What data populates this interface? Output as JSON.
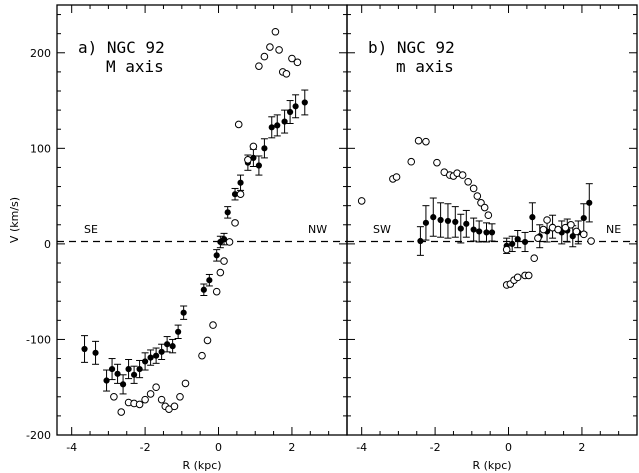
{
  "chart_data": [
    {
      "type": "scatter",
      "panel": "a",
      "title_line1": "a) NGC 92",
      "title_line2": "M axis",
      "xlabel": "R (kpc)",
      "ylabel": "V (km/s)",
      "xlim": [
        -4.4,
        3.5
      ],
      "ylim": [
        -200,
        250
      ],
      "xticks": [
        "-4",
        "-2",
        "0",
        "2"
      ],
      "yticks": [
        "-200",
        "-100",
        "0",
        "100",
        "200"
      ],
      "zero_line": true,
      "left_label": "SE",
      "right_label": "NW",
      "series": [
        {
          "marker": "filled-circle-errorbar",
          "points": [
            {
              "x": -3.65,
              "y": -110,
              "err": 14
            },
            {
              "x": -3.35,
              "y": -114,
              "err": 12
            },
            {
              "x": -3.05,
              "y": -143,
              "err": 11
            },
            {
              "x": -2.9,
              "y": -131,
              "err": 11
            },
            {
              "x": -2.75,
              "y": -136,
              "err": 10
            },
            {
              "x": -2.6,
              "y": -147,
              "err": 10
            },
            {
              "x": -2.45,
              "y": -131,
              "err": 10
            },
            {
              "x": -2.3,
              "y": -137,
              "err": 9
            },
            {
              "x": -2.15,
              "y": -131,
              "err": 9
            },
            {
              "x": -2.0,
              "y": -123,
              "err": 9
            },
            {
              "x": -1.85,
              "y": -119,
              "err": 8
            },
            {
              "x": -1.7,
              "y": -117,
              "err": 8
            },
            {
              "x": -1.55,
              "y": -113,
              "err": 8
            },
            {
              "x": -1.4,
              "y": -105,
              "err": 8
            },
            {
              "x": -1.25,
              "y": -107,
              "err": 7
            },
            {
              "x": -1.1,
              "y": -92,
              "err": 7
            },
            {
              "x": -0.95,
              "y": -72,
              "err": 7
            },
            {
              "x": -0.4,
              "y": -48,
              "err": 6
            },
            {
              "x": -0.25,
              "y": -38,
              "err": 6
            },
            {
              "x": -0.05,
              "y": -12,
              "err": 6
            },
            {
              "x": 0.05,
              "y": 2,
              "err": 6
            },
            {
              "x": 0.15,
              "y": 5,
              "err": 6
            },
            {
              "x": 0.25,
              "y": 33,
              "err": 6
            },
            {
              "x": 0.45,
              "y": 52,
              "err": 6
            },
            {
              "x": 0.6,
              "y": 64,
              "err": 8
            },
            {
              "x": 0.8,
              "y": 85,
              "err": 8
            },
            {
              "x": 0.95,
              "y": 90,
              "err": 9
            },
            {
              "x": 1.1,
              "y": 82,
              "err": 10
            },
            {
              "x": 1.25,
              "y": 100,
              "err": 10
            },
            {
              "x": 1.45,
              "y": 122,
              "err": 11
            },
            {
              "x": 1.6,
              "y": 124,
              "err": 11
            },
            {
              "x": 1.8,
              "y": 128,
              "err": 12
            },
            {
              "x": 1.95,
              "y": 138,
              "err": 12
            },
            {
              "x": 2.1,
              "y": 144,
              "err": 12
            },
            {
              "x": 2.35,
              "y": 148,
              "err": 13
            }
          ]
        },
        {
          "marker": "open-circle",
          "points": [
            {
              "x": -2.85,
              "y": -160
            },
            {
              "x": -2.65,
              "y": -176
            },
            {
              "x": -2.45,
              "y": -166
            },
            {
              "x": -2.3,
              "y": -167
            },
            {
              "x": -2.15,
              "y": -168
            },
            {
              "x": -2.0,
              "y": -163
            },
            {
              "x": -1.85,
              "y": -157
            },
            {
              "x": -1.7,
              "y": -150
            },
            {
              "x": -1.55,
              "y": -163
            },
            {
              "x": -1.45,
              "y": -170
            },
            {
              "x": -1.35,
              "y": -173
            },
            {
              "x": -1.2,
              "y": -170
            },
            {
              "x": -1.05,
              "y": -160
            },
            {
              "x": -0.9,
              "y": -146
            },
            {
              "x": -0.45,
              "y": -117
            },
            {
              "x": -0.3,
              "y": -101
            },
            {
              "x": -0.15,
              "y": -85
            },
            {
              "x": -0.05,
              "y": -50
            },
            {
              "x": 0.05,
              "y": -30
            },
            {
              "x": 0.15,
              "y": -18
            },
            {
              "x": 0.3,
              "y": 2
            },
            {
              "x": 0.45,
              "y": 22
            },
            {
              "x": 0.6,
              "y": 52
            },
            {
              "x": 0.8,
              "y": 88
            },
            {
              "x": 0.95,
              "y": 102
            },
            {
              "x": 1.1,
              "y": 186
            },
            {
              "x": 1.25,
              "y": 196
            },
            {
              "x": 1.4,
              "y": 206
            },
            {
              "x": 1.55,
              "y": 222
            },
            {
              "x": 1.65,
              "y": 203
            },
            {
              "x": 1.75,
              "y": 180
            },
            {
              "x": 1.85,
              "y": 178
            },
            {
              "x": 2.0,
              "y": 194
            },
            {
              "x": 2.15,
              "y": 190
            },
            {
              "x": 0.55,
              "y": 125
            }
          ]
        }
      ]
    },
    {
      "type": "scatter",
      "panel": "b",
      "title_line1": "b) NGC 92",
      "title_line2": "m axis",
      "xlabel": "R (kpc)",
      "ylabel": "",
      "xlim": [
        -4.4,
        3.5
      ],
      "ylim": [
        -200,
        250
      ],
      "xticks": [
        "-4",
        "-2",
        "0",
        "2"
      ],
      "yticks": [],
      "zero_line": true,
      "left_label": "SW",
      "right_label": "NE",
      "series": [
        {
          "marker": "filled-circle-errorbar",
          "points": [
            {
              "x": -2.4,
              "y": 3,
              "err": 15
            },
            {
              "x": -2.25,
              "y": 22,
              "err": 18
            },
            {
              "x": -2.05,
              "y": 28,
              "err": 20
            },
            {
              "x": -1.85,
              "y": 25,
              "err": 18
            },
            {
              "x": -1.65,
              "y": 24,
              "err": 18
            },
            {
              "x": -1.45,
              "y": 23,
              "err": 16
            },
            {
              "x": -1.3,
              "y": 16,
              "err": 15
            },
            {
              "x": -1.15,
              "y": 21,
              "err": 14
            },
            {
              "x": -0.95,
              "y": 15,
              "err": 12
            },
            {
              "x": -0.8,
              "y": 13,
              "err": 11
            },
            {
              "x": -0.6,
              "y": 12,
              "err": 10
            },
            {
              "x": -0.45,
              "y": 12,
              "err": 9
            },
            {
              "x": -0.05,
              "y": -2,
              "err": 8
            },
            {
              "x": 0.1,
              "y": 0,
              "err": 8
            },
            {
              "x": 0.25,
              "y": 5,
              "err": 9
            },
            {
              "x": 0.45,
              "y": 2,
              "err": 10
            },
            {
              "x": 0.65,
              "y": 28,
              "err": 15
            },
            {
              "x": 0.85,
              "y": 8,
              "err": 12
            },
            {
              "x": 1.05,
              "y": 13,
              "err": 11
            },
            {
              "x": 1.2,
              "y": 18,
              "err": 12
            },
            {
              "x": 1.45,
              "y": 12,
              "err": 12
            },
            {
              "x": 1.6,
              "y": 14,
              "err": 12
            },
            {
              "x": 1.75,
              "y": 8,
              "err": 11
            },
            {
              "x": 1.9,
              "y": 12,
              "err": 12
            },
            {
              "x": 2.05,
              "y": 27,
              "err": 15
            },
            {
              "x": 2.2,
              "y": 43,
              "err": 20
            }
          ]
        },
        {
          "marker": "open-circle",
          "points": [
            {
              "x": -4.0,
              "y": 45
            },
            {
              "x": -3.15,
              "y": 68
            },
            {
              "x": -3.05,
              "y": 70
            },
            {
              "x": -2.65,
              "y": 86
            },
            {
              "x": -2.45,
              "y": 108
            },
            {
              "x": -2.25,
              "y": 107
            },
            {
              "x": -1.95,
              "y": 85
            },
            {
              "x": -1.75,
              "y": 75
            },
            {
              "x": -1.6,
              "y": 72
            },
            {
              "x": -1.5,
              "y": 71
            },
            {
              "x": -1.4,
              "y": 74
            },
            {
              "x": -1.25,
              "y": 72
            },
            {
              "x": -1.1,
              "y": 65
            },
            {
              "x": -0.95,
              "y": 58
            },
            {
              "x": -0.85,
              "y": 50
            },
            {
              "x": -0.75,
              "y": 43
            },
            {
              "x": -0.65,
              "y": 38
            },
            {
              "x": -0.55,
              "y": 30
            },
            {
              "x": -0.05,
              "y": -43
            },
            {
              "x": 0.05,
              "y": -42
            },
            {
              "x": 0.15,
              "y": -38
            },
            {
              "x": 0.25,
              "y": -35
            },
            {
              "x": 0.45,
              "y": -33
            },
            {
              "x": 0.55,
              "y": -33
            },
            {
              "x": 0.7,
              "y": -15
            },
            {
              "x": 0.8,
              "y": 6
            },
            {
              "x": 0.95,
              "y": 15
            },
            {
              "x": 1.05,
              "y": 25
            },
            {
              "x": 1.2,
              "y": 17
            },
            {
              "x": 1.35,
              "y": 15
            },
            {
              "x": 1.55,
              "y": 17
            },
            {
              "x": 1.7,
              "y": 20
            },
            {
              "x": 1.85,
              "y": 13
            },
            {
              "x": 2.05,
              "y": 10
            },
            {
              "x": 2.25,
              "y": 3
            },
            {
              "x": -0.05,
              "y": -6
            }
          ]
        }
      ]
    }
  ]
}
